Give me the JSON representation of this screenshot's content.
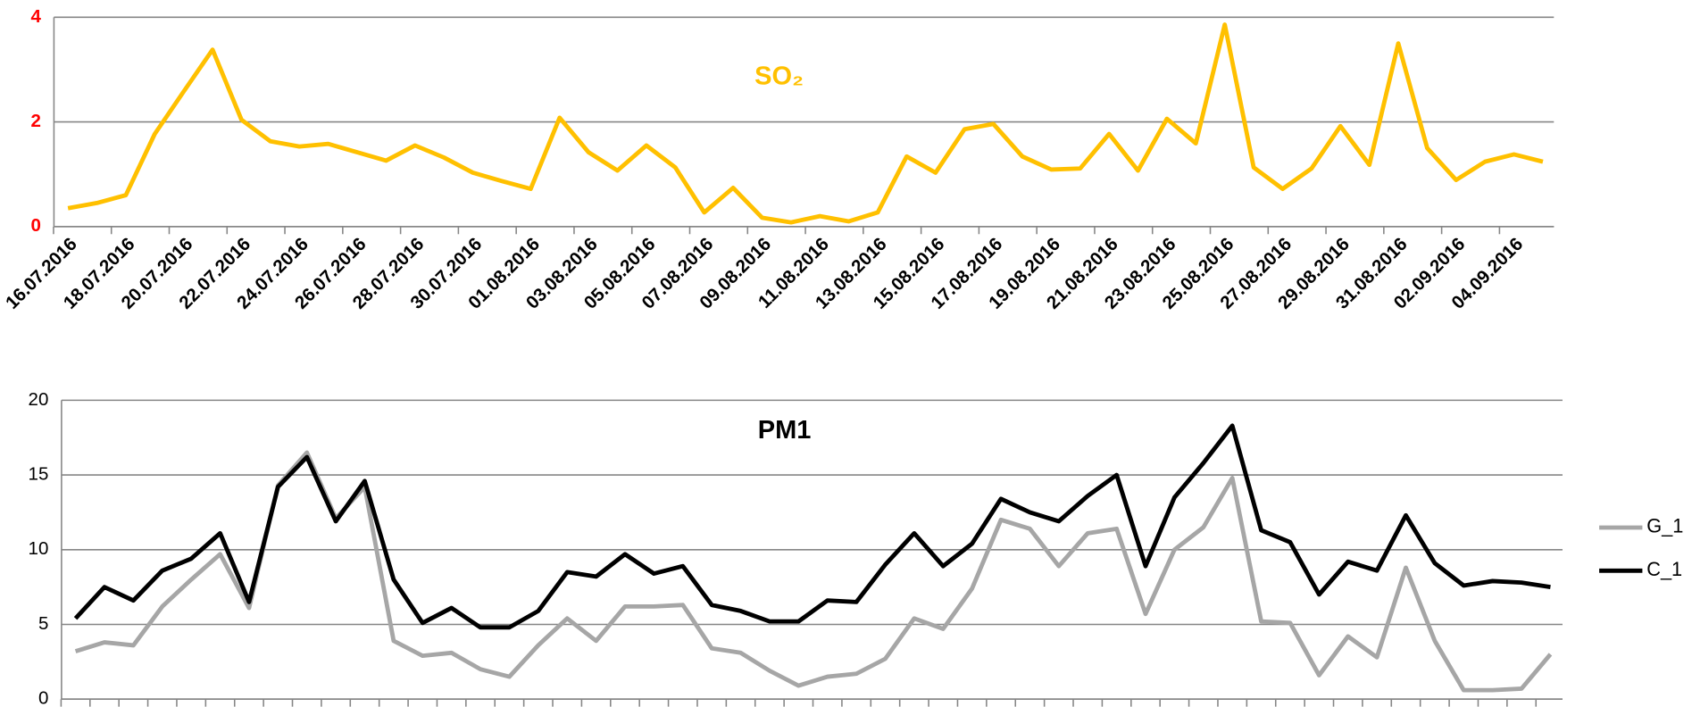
{
  "chart_data": [
    {
      "type": "line",
      "title": "SO₂",
      "categories": [
        "16.07.2016",
        null,
        "18.07.2016",
        null,
        "20.07.2016",
        null,
        "22.07.2016",
        null,
        "24.07.2016",
        null,
        "26.07.2016",
        null,
        "28.07.2016",
        null,
        "30.07.2016",
        null,
        "01.08.2016",
        null,
        "03.08.2016",
        null,
        "05.08.2016",
        null,
        "07.08.2016",
        null,
        "09.08.2016",
        null,
        "11.08.2016",
        null,
        "13.08.2016",
        null,
        "15.08.2016",
        null,
        "17.08.2016",
        null,
        "19.08.2016",
        null,
        "21.08.2016",
        null,
        "23.08.2016",
        null,
        "25.08.2016",
        null,
        "27.08.2016",
        null,
        "29.08.2016",
        null,
        "31.08.2016",
        null,
        "02.09.2016",
        null,
        "04.09.2016",
        null
      ],
      "series": [
        {
          "name": "SO₂",
          "color": "#ffc000",
          "values": [
            0.35,
            0.45,
            0.6,
            1.77,
            2.58,
            3.38,
            2.04,
            1.63,
            1.53,
            1.58,
            1.42,
            1.26,
            1.55,
            1.32,
            1.03,
            0.87,
            0.72,
            2.08,
            1.42,
            1.07,
            1.55,
            1.13,
            0.27,
            0.74,
            0.17,
            0.08,
            0.2,
            0.1,
            0.27,
            1.34,
            1.03,
            1.86,
            1.96,
            1.34,
            1.09,
            1.11,
            1.77,
            1.07,
            2.06,
            1.59,
            3.86,
            1.13,
            0.72,
            1.11,
            1.92,
            1.18,
            3.5,
            1.5,
            0.89,
            1.24,
            1.38,
            1.24
          ]
        }
      ],
      "ylim": [
        0,
        4
      ],
      "yticks": [
        0,
        2,
        4
      ],
      "grid": true,
      "tick_label_color": "#ff0000"
    },
    {
      "type": "line",
      "title": "PM1",
      "series": [
        {
          "name": "G_1",
          "color": "#a6a6a6",
          "values": [
            3.2,
            3.8,
            3.6,
            6.2,
            8.0,
            9.7,
            6.1,
            14.3,
            16.5,
            12.1,
            14.2,
            3.9,
            2.9,
            3.1,
            2.0,
            1.5,
            3.6,
            5.4,
            3.9,
            6.2,
            6.2,
            6.3,
            3.4,
            3.1,
            1.9,
            0.9,
            1.5,
            1.7,
            2.7,
            5.4,
            4.7,
            7.4,
            12.0,
            11.4,
            8.9,
            11.1,
            11.4,
            5.7,
            10.0,
            11.5,
            14.8,
            5.2,
            5.1,
            1.6,
            4.2,
            2.8,
            8.8,
            3.9,
            0.6,
            0.6,
            0.7,
            3.0
          ]
        },
        {
          "name": "C_1",
          "color": "#000000",
          "values": [
            5.4,
            7.5,
            6.6,
            8.6,
            9.4,
            11.1,
            6.5,
            14.2,
            16.2,
            11.9,
            14.6,
            8.0,
            5.1,
            6.1,
            4.8,
            4.8,
            5.9,
            8.5,
            8.2,
            9.7,
            8.4,
            8.9,
            6.3,
            5.9,
            5.2,
            5.2,
            6.6,
            6.5,
            9.0,
            11.1,
            8.9,
            10.4,
            13.4,
            12.5,
            11.9,
            13.6,
            15.0,
            8.9,
            13.5,
            15.8,
            18.3,
            11.3,
            10.5,
            7.0,
            9.2,
            8.6,
            12.3,
            9.1,
            7.6,
            7.9,
            7.8,
            7.5
          ]
        }
      ],
      "ylim": [
        0,
        20
      ],
      "yticks": [
        0,
        5,
        10,
        15,
        20
      ],
      "grid": true,
      "legend": "right",
      "tick_label_color": "#000000"
    }
  ]
}
